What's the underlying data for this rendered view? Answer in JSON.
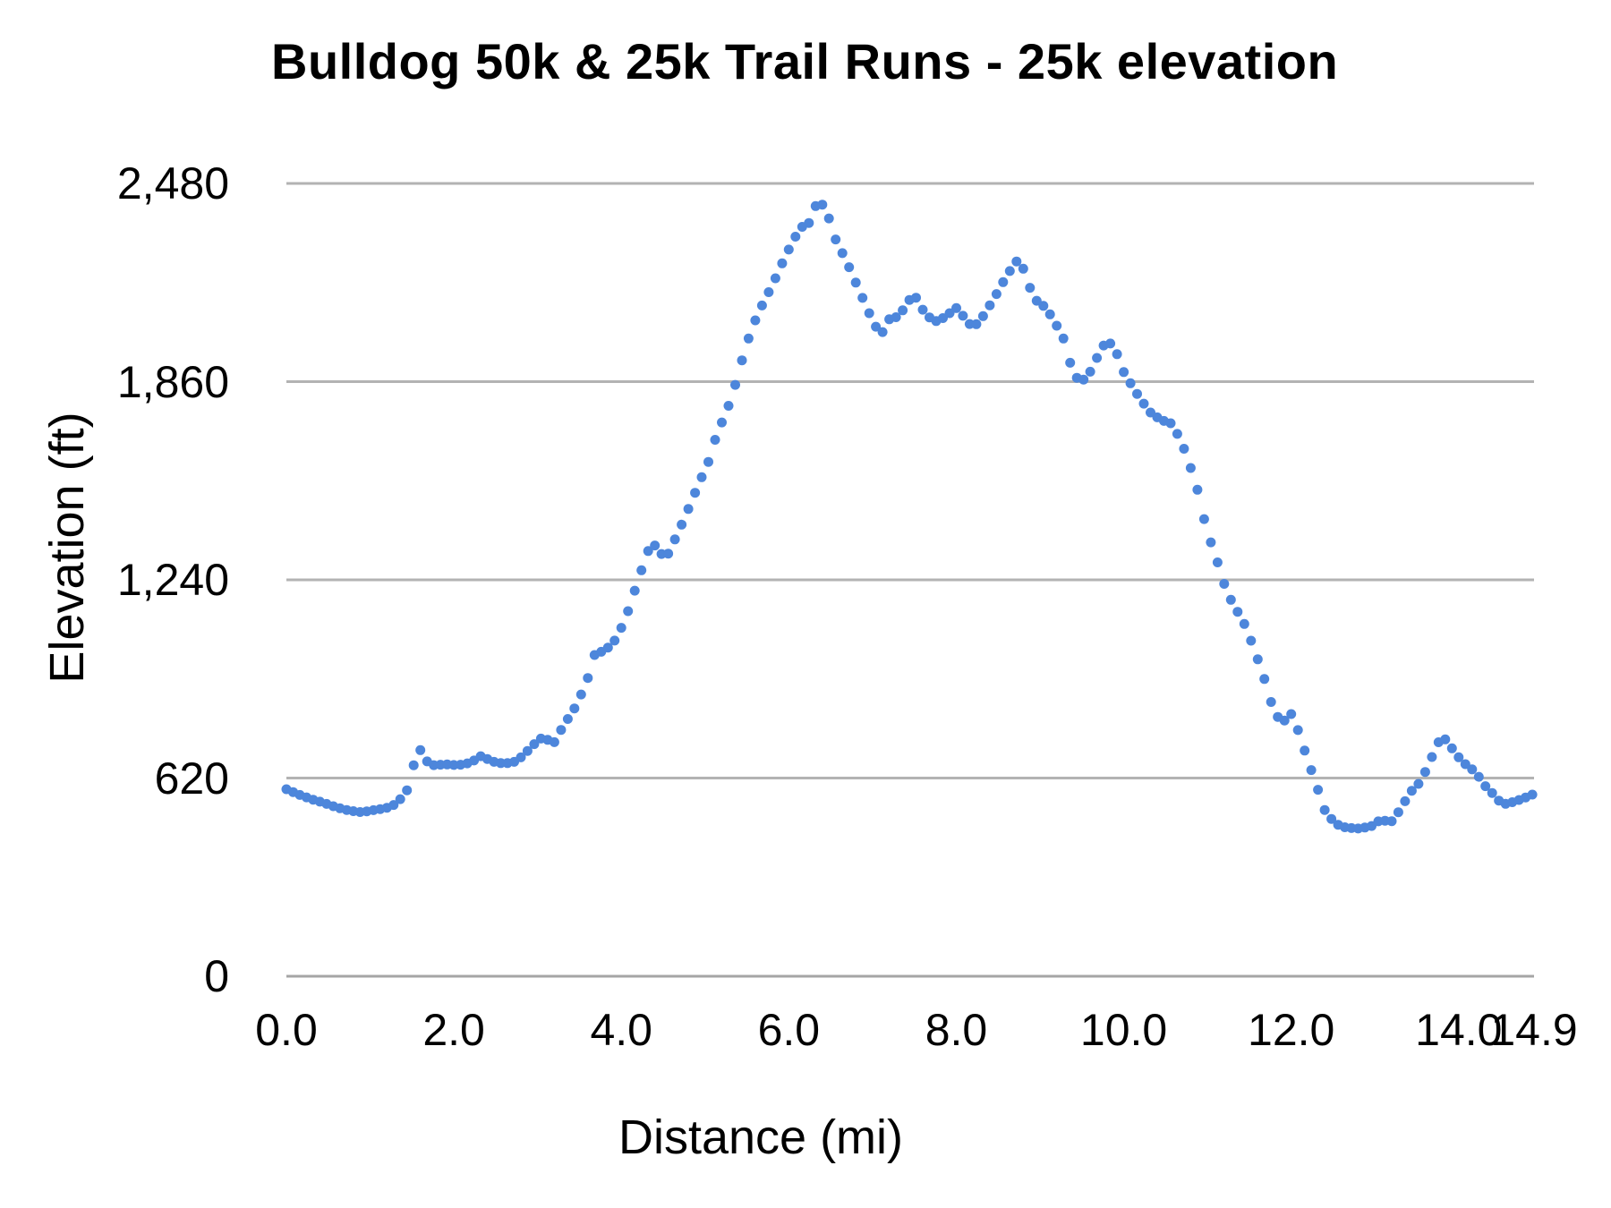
{
  "title": "Bulldog 50k & 25k Trail Runs - 25k elevation",
  "colors": {
    "series": "#4d86db",
    "gridline": "#b3b3b3",
    "baseline": "#a5a5a5",
    "text": "#000000",
    "background": "#ffffff"
  },
  "chart_data": {
    "type": "scatter",
    "title": "Bulldog 50k & 25k Trail Runs - 25k elevation",
    "xlabel": "Distance (mi)",
    "ylabel": "Elevation (ft)",
    "xlim": [
      0,
      14.9
    ],
    "ylim": [
      0,
      2480
    ],
    "grid": "horizontal-only",
    "legend": "none",
    "x_ticks": [
      {
        "value": 0,
        "label": "0.0"
      },
      {
        "value": 2,
        "label": "2.0"
      },
      {
        "value": 4,
        "label": "4.0"
      },
      {
        "value": 6,
        "label": "6.0"
      },
      {
        "value": 8,
        "label": "8.0"
      },
      {
        "value": 10,
        "label": "10.0"
      },
      {
        "value": 12,
        "label": "12.0"
      },
      {
        "value": 14,
        "label": "14.0"
      },
      {
        "value": 14.9,
        "label": "14.9"
      }
    ],
    "y_ticks": [
      {
        "value": 0,
        "label": "0"
      },
      {
        "value": 620,
        "label": "620"
      },
      {
        "value": 1240,
        "label": "1,240"
      },
      {
        "value": 1860,
        "label": "1,860"
      },
      {
        "value": 2480,
        "label": "2,480"
      }
    ],
    "point_interval_mi": 0.08,
    "profile_mi_ft": [
      [
        0.0,
        585
      ],
      [
        0.15,
        568
      ],
      [
        0.3,
        554
      ],
      [
        0.45,
        542
      ],
      [
        0.6,
        528
      ],
      [
        0.75,
        518
      ],
      [
        0.9,
        513
      ],
      [
        1.0,
        518
      ],
      [
        1.1,
        522
      ],
      [
        1.2,
        527
      ],
      [
        1.32,
        540
      ],
      [
        1.45,
        585
      ],
      [
        1.52,
        660
      ],
      [
        1.58,
        712
      ],
      [
        1.63,
        700
      ],
      [
        1.68,
        672
      ],
      [
        1.75,
        660
      ],
      [
        1.9,
        663
      ],
      [
        2.05,
        660
      ],
      [
        2.2,
        668
      ],
      [
        2.33,
        690
      ],
      [
        2.45,
        672
      ],
      [
        2.6,
        665
      ],
      [
        2.75,
        672
      ],
      [
        2.9,
        710
      ],
      [
        3.02,
        742
      ],
      [
        3.1,
        748
      ],
      [
        3.17,
        718
      ],
      [
        3.3,
        780
      ],
      [
        3.45,
        842
      ],
      [
        3.58,
        915
      ],
      [
        3.68,
        1005
      ],
      [
        3.8,
        1020
      ],
      [
        3.9,
        1040
      ],
      [
        4.0,
        1090
      ],
      [
        4.1,
        1155
      ],
      [
        4.2,
        1240
      ],
      [
        4.32,
        1330
      ],
      [
        4.42,
        1352
      ],
      [
        4.52,
        1300
      ],
      [
        4.62,
        1355
      ],
      [
        4.75,
        1430
      ],
      [
        4.9,
        1525
      ],
      [
        5.05,
        1615
      ],
      [
        5.15,
        1705
      ],
      [
        5.25,
        1760
      ],
      [
        5.36,
        1850
      ],
      [
        5.48,
        1965
      ],
      [
        5.58,
        2040
      ],
      [
        5.7,
        2110
      ],
      [
        5.8,
        2160
      ],
      [
        5.92,
        2230
      ],
      [
        6.05,
        2300
      ],
      [
        6.15,
        2345
      ],
      [
        6.22,
        2340
      ],
      [
        6.3,
        2405
      ],
      [
        6.37,
        2420
      ],
      [
        6.44,
        2405
      ],
      [
        6.55,
        2310
      ],
      [
        6.7,
        2230
      ],
      [
        6.85,
        2140
      ],
      [
        7.0,
        2050
      ],
      [
        7.1,
        2005
      ],
      [
        7.2,
        2055
      ],
      [
        7.32,
        2065
      ],
      [
        7.42,
        2110
      ],
      [
        7.5,
        2132
      ],
      [
        7.6,
        2085
      ],
      [
        7.73,
        2046
      ],
      [
        7.85,
        2060
      ],
      [
        8.0,
        2090
      ],
      [
        8.1,
        2060
      ],
      [
        8.2,
        2027
      ],
      [
        8.32,
        2065
      ],
      [
        8.45,
        2120
      ],
      [
        8.6,
        2190
      ],
      [
        8.7,
        2230
      ],
      [
        8.76,
        2248
      ],
      [
        8.85,
        2170
      ],
      [
        8.95,
        2115
      ],
      [
        9.05,
        2095
      ],
      [
        9.15,
        2060
      ],
      [
        9.28,
        1995
      ],
      [
        9.38,
        1900
      ],
      [
        9.47,
        1858
      ],
      [
        9.57,
        1875
      ],
      [
        9.7,
        1945
      ],
      [
        9.8,
        1992
      ],
      [
        9.9,
        1960
      ],
      [
        10.0,
        1890
      ],
      [
        10.08,
        1855
      ],
      [
        10.2,
        1805
      ],
      [
        10.33,
        1760
      ],
      [
        10.45,
        1740
      ],
      [
        10.58,
        1728
      ],
      [
        10.7,
        1665
      ],
      [
        10.8,
        1590
      ],
      [
        10.9,
        1505
      ],
      [
        11.0,
        1380
      ],
      [
        11.07,
        1340
      ],
      [
        11.18,
        1240
      ],
      [
        11.3,
        1165
      ],
      [
        11.42,
        1115
      ],
      [
        11.55,
        1030
      ],
      [
        11.68,
        930
      ],
      [
        11.8,
        822
      ],
      [
        11.9,
        795
      ],
      [
        12.0,
        820
      ],
      [
        12.08,
        770
      ],
      [
        12.18,
        690
      ],
      [
        12.28,
        615
      ],
      [
        12.4,
        520
      ],
      [
        12.52,
        478
      ],
      [
        12.65,
        465
      ],
      [
        12.8,
        462
      ],
      [
        12.95,
        468
      ],
      [
        13.08,
        492
      ],
      [
        13.18,
        478
      ],
      [
        13.3,
        520
      ],
      [
        13.42,
        575
      ],
      [
        13.55,
        610
      ],
      [
        13.67,
        680
      ],
      [
        13.8,
        755
      ],
      [
        13.9,
        720
      ],
      [
        14.0,
        685
      ],
      [
        14.1,
        658
      ],
      [
        14.2,
        640
      ],
      [
        14.3,
        600
      ],
      [
        14.42,
        568
      ],
      [
        14.52,
        537
      ],
      [
        14.65,
        545
      ],
      [
        14.78,
        557
      ],
      [
        14.93,
        574
      ]
    ]
  }
}
